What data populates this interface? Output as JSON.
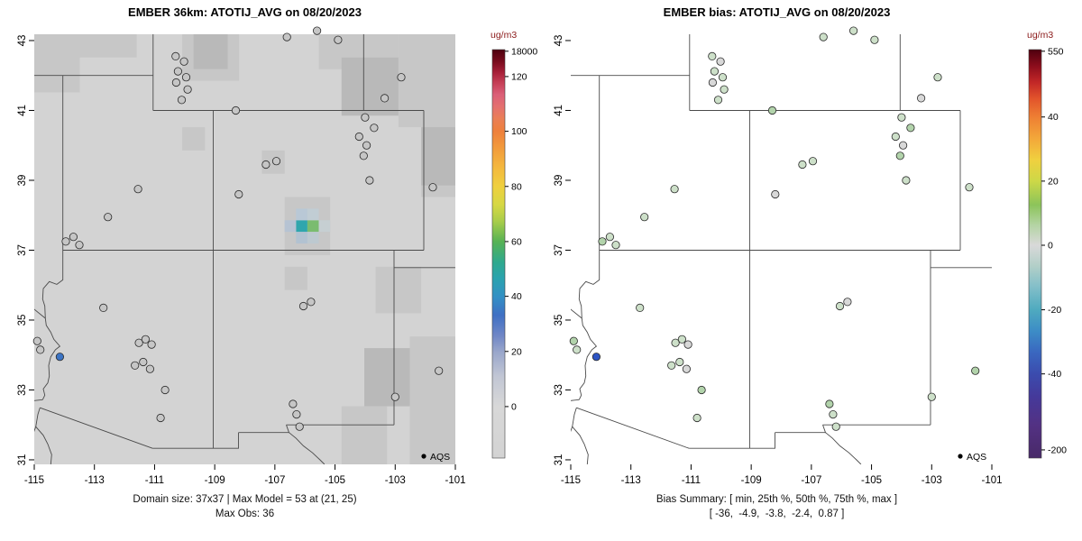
{
  "chart_data": {
    "type": "scatter",
    "subtype": "dual-geospatial-map-panels",
    "region": "Four Corners / Southwestern US",
    "axes": {
      "lon_ticks": [
        -115,
        -113,
        -111,
        -109,
        -107,
        -105,
        -103,
        -101
      ],
      "lat_ticks": [
        31,
        33,
        35,
        37,
        39,
        41,
        43
      ],
      "lon_range": [
        -115,
        -101
      ],
      "lat_range": [
        30.87,
        43.18
      ]
    },
    "style": {
      "border_color": "#4a4a4a",
      "unit_color": "#8b1a1a",
      "station_stroke": "#2a2a2a"
    },
    "domain_size": "37x37",
    "max_model": 53,
    "max_model_at": "(21, 25)",
    "max_obs": 36,
    "bias_summary": {
      "min": -36,
      "p25": -4.9,
      "p50": -3.8,
      "p75": -2.4,
      "max": 0.87
    },
    "panels": [
      {
        "id": "model",
        "title": "EMBER 36km: ATOTIJ_AVG on 08/20/2023",
        "caption_line1": "Domain size: 37x37 | Max Model = 53 at (21, 25)",
        "caption_line2": "Max Obs: 36",
        "legend_label": "AQS",
        "show_raster": true,
        "color_key": "model_color",
        "colorbar": {
          "unit": "ug/m3",
          "ticks": [
            {
              "label": "18000",
              "f": 0.004
            },
            {
              "label": "120",
              "f": 0.066
            },
            {
              "label": "100",
              "f": 0.2
            },
            {
              "label": "80",
              "f": 0.335
            },
            {
              "label": "60",
              "f": 0.47
            },
            {
              "label": "40",
              "f": 0.604
            },
            {
              "label": "20",
              "f": 0.739
            },
            {
              "label": "0",
              "f": 0.874
            }
          ],
          "gradient": [
            [
              "0%",
              "#4e000e"
            ],
            [
              "3%",
              "#7a0c1e"
            ],
            [
              "5.5%",
              "#a61f38"
            ],
            [
              "8%",
              "#c43d55"
            ],
            [
              "11%",
              "#db5f78"
            ],
            [
              "14%",
              "#e4706f"
            ],
            [
              "17%",
              "#ea7f55"
            ],
            [
              "20%",
              "#ee803c"
            ],
            [
              "24%",
              "#f29a3c"
            ],
            [
              "29%",
              "#f4b93e"
            ],
            [
              "33.5%",
              "#efd03f"
            ],
            [
              "38%",
              "#d6d844"
            ],
            [
              "42%",
              "#a9cd4a"
            ],
            [
              "47%",
              "#57b254"
            ],
            [
              "52%",
              "#2fa98d"
            ],
            [
              "56%",
              "#2aa3ae"
            ],
            [
              "60.5%",
              "#3390c5"
            ],
            [
              "65%",
              "#3f70c4"
            ],
            [
              "70%",
              "#6f86c6"
            ],
            [
              "74%",
              "#99a6cb"
            ],
            [
              "80%",
              "#c1c6d4"
            ],
            [
              "87.4%",
              "#d8d8d8"
            ],
            [
              "100%",
              "#d3d3d3"
            ]
          ]
        }
      },
      {
        "id": "bias",
        "title": "EMBER bias: ATOTIJ_AVG on 08/20/2023",
        "caption_line1": "Bias Summary: [ min, 25th %, 50th %, 75th %, max ]",
        "caption_line2": "[ -36,  -4.9,  -3.8,  -2.4,  0.87 ]",
        "legend_label": "AQS",
        "show_raster": false,
        "color_key": "bias_color",
        "colorbar": {
          "unit": "ug/m3",
          "ticks": [
            {
              "label": "550",
              "f": 0.004
            },
            {
              "label": "40",
              "f": 0.165
            },
            {
              "label": "20",
              "f": 0.322
            },
            {
              "label": "0",
              "f": 0.479
            },
            {
              "label": "-20",
              "f": 0.637
            },
            {
              "label": "-40",
              "f": 0.794
            },
            {
              "label": "-200",
              "f": 0.98
            }
          ],
          "gradient": [
            [
              "0%",
              "#4e000e"
            ],
            [
              "4%",
              "#8c0d1c"
            ],
            [
              "8%",
              "#c22727"
            ],
            [
              "12%",
              "#e2542b"
            ],
            [
              "16.5%",
              "#ee7f33"
            ],
            [
              "22%",
              "#f3a93a"
            ],
            [
              "27%",
              "#f0d03f"
            ],
            [
              "32.2%",
              "#cdd847"
            ],
            [
              "38%",
              "#8cc45a"
            ],
            [
              "43%",
              "#b4d4a4"
            ],
            [
              "47.9%",
              "#d9d9d9"
            ],
            [
              "53%",
              "#b2cfc8"
            ],
            [
              "58%",
              "#83bfc9"
            ],
            [
              "63.7%",
              "#4faabf"
            ],
            [
              "69%",
              "#3c8cc6"
            ],
            [
              "74%",
              "#3a68c0"
            ],
            [
              "79.4%",
              "#3b4cae"
            ],
            [
              "85%",
              "#45399a"
            ],
            [
              "92%",
              "#533183"
            ],
            [
              "100%",
              "#482968"
            ]
          ]
        }
      }
    ],
    "raster": {
      "ncols": 37,
      "nrows": 37,
      "base": "#d3d3d3",
      "levels": {
        "1": "#c7c7c7",
        "2": "#b9b9b9"
      },
      "patches": [
        {
          "c0": 0,
          "r0": 0,
          "c1": 8,
          "r1": 1,
          "l": 1
        },
        {
          "c0": 0,
          "r0": 0,
          "c1": 3,
          "r1": 4,
          "l": 1
        },
        {
          "c0": 13,
          "r0": 0,
          "c1": 17,
          "r1": 3,
          "l": 1
        },
        {
          "c0": 14,
          "r0": 0,
          "c1": 16,
          "r1": 2,
          "l": 2
        },
        {
          "c0": 25,
          "r0": 0,
          "c1": 31,
          "r1": 2,
          "l": 1
        },
        {
          "c0": 27,
          "r0": 2,
          "c1": 31,
          "r1": 6,
          "l": 2
        },
        {
          "c0": 32,
          "r0": 0,
          "c1": 36,
          "r1": 7,
          "l": 1
        },
        {
          "c0": 34,
          "r0": 2,
          "c1": 36,
          "r1": 13,
          "l": 1
        },
        {
          "c0": 34,
          "r0": 8,
          "c1": 36,
          "r1": 12,
          "l": 2
        },
        {
          "c0": 13,
          "r0": 8,
          "c1": 14,
          "r1": 9,
          "l": 1
        },
        {
          "c0": 20,
          "r0": 10,
          "c1": 21,
          "r1": 11,
          "l": 1
        },
        {
          "c0": 22,
          "r0": 14,
          "c1": 25,
          "r1": 18,
          "l": 1
        },
        {
          "c0": 22,
          "r0": 20,
          "c1": 23,
          "r1": 21,
          "l": 1
        },
        {
          "c0": 30,
          "r0": 20,
          "c1": 33,
          "r1": 23,
          "l": 1
        },
        {
          "c0": 29,
          "r0": 27,
          "c1": 32,
          "r1": 31,
          "l": 2
        },
        {
          "c0": 33,
          "r0": 26,
          "c1": 36,
          "r1": 36,
          "l": 1
        },
        {
          "c0": 27,
          "r0": 32,
          "c1": 30,
          "r1": 36,
          "l": 1
        }
      ],
      "cells": [
        {
          "c": 23,
          "r": 16,
          "col": "#2fa6ad"
        },
        {
          "c": 24,
          "r": 16,
          "col": "#7abc6f"
        },
        {
          "c": 22,
          "r": 16,
          "col": "#b6c3d3"
        },
        {
          "c": 23,
          "r": 15,
          "col": "#b9c8d6"
        },
        {
          "c": 24,
          "r": 15,
          "col": "#c1cdd4"
        },
        {
          "c": 25,
          "r": 16,
          "col": "#c6cfd2"
        },
        {
          "c": 23,
          "r": 17,
          "col": "#b2c2d1"
        },
        {
          "c": 24,
          "r": 17,
          "col": "#bdc9d0"
        }
      ]
    },
    "borders": [
      [
        [
          -115.35,
          42
        ],
        [
          -111.05,
          42
        ]
      ],
      [
        [
          -111.05,
          43.2
        ],
        [
          -111.05,
          41
        ]
      ],
      [
        [
          -111.05,
          41
        ],
        [
          -102.05,
          41
        ]
      ],
      [
        [
          -104.05,
          43.2
        ],
        [
          -104.05,
          41
        ]
      ],
      [
        [
          -102.05,
          41
        ],
        [
          -102.05,
          37
        ]
      ],
      [
        [
          -114.05,
          42
        ],
        [
          -114.05,
          37
        ]
      ],
      [
        [
          -114.05,
          37
        ],
        [
          -102.05,
          37
        ]
      ],
      [
        [
          -109.05,
          41
        ],
        [
          -109.05,
          37
        ]
      ],
      [
        [
          -109.05,
          37
        ],
        [
          -109.05,
          31.33
        ]
      ],
      [
        [
          -103.04,
          37
        ],
        [
          -103.04,
          32.0
        ]
      ],
      [
        [
          -103.04,
          32.0
        ],
        [
          -106.62,
          32.0
        ]
      ],
      [
        [
          -106.62,
          32.0
        ],
        [
          -106.53,
          31.78
        ],
        [
          -108.21,
          31.78
        ]
      ],
      [
        [
          -108.21,
          31.78
        ],
        [
          -108.21,
          31.33
        ],
        [
          -111.07,
          31.33
        ]
      ],
      [
        [
          -111.07,
          31.33
        ],
        [
          -114.81,
          32.49
        ]
      ],
      [
        [
          -106.53,
          31.78
        ],
        [
          -106.3,
          31.62
        ],
        [
          -106.05,
          31.4
        ],
        [
          -105.75,
          31.2
        ],
        [
          -105.5,
          31.0
        ],
        [
          -105.35,
          30.87
        ]
      ],
      [
        [
          -103.04,
          36.5
        ],
        [
          -100.8,
          36.5
        ]
      ],
      [
        [
          -114.05,
          37
        ],
        [
          -114.05,
          36.15
        ],
        [
          -114.25,
          36.02
        ],
        [
          -114.5,
          36.1
        ],
        [
          -114.7,
          35.9
        ],
        [
          -114.72,
          35.6
        ],
        [
          -114.65,
          35.4
        ],
        [
          -114.63,
          35.05
        ],
        [
          -114.6,
          34.85
        ],
        [
          -114.45,
          34.65
        ],
        [
          -114.35,
          34.45
        ],
        [
          -114.15,
          34.25
        ],
        [
          -114.3,
          34.15
        ],
        [
          -114.45,
          33.95
        ],
        [
          -114.52,
          33.7
        ],
        [
          -114.5,
          33.4
        ],
        [
          -114.55,
          33.2
        ],
        [
          -114.7,
          33.03
        ],
        [
          -114.65,
          32.85
        ],
        [
          -114.72,
          32.72
        ]
      ],
      [
        [
          -115.35,
          35.55
        ],
        [
          -114.63,
          35.05
        ]
      ],
      [
        [
          -114.72,
          32.72
        ],
        [
          -115.35,
          32.66
        ]
      ],
      [
        [
          -114.81,
          32.49
        ],
        [
          -114.88,
          32.3
        ],
        [
          -114.95,
          31.95
        ],
        [
          -114.7,
          31.7
        ],
        [
          -114.55,
          31.45
        ],
        [
          -114.42,
          31.15
        ],
        [
          -114.45,
          30.87
        ]
      ],
      [
        [
          -114.95,
          31.95
        ],
        [
          -115.1,
          31.6
        ],
        [
          -115.2,
          31.25
        ],
        [
          -115.12,
          30.95
        ],
        [
          -115.05,
          30.87
        ]
      ]
    ],
    "stations": [
      {
        "lon": -106.6,
        "lat": 43.1,
        "model_color": "#c6c6c6",
        "bias_color": "#cde0c9"
      },
      {
        "lon": -104.9,
        "lat": 43.02,
        "model_color": "#c6c6c6",
        "bias_color": "#cde0c9"
      },
      {
        "lon": -105.6,
        "lat": 43.28,
        "model_color": "#c6c6c6",
        "bias_color": "#cde0c9"
      },
      {
        "lon": -110.3,
        "lat": 42.55,
        "model_color": "#c6c6c6",
        "bias_color": "#cde0c9"
      },
      {
        "lon": -110.02,
        "lat": 42.4,
        "model_color": "#c6c6c6",
        "bias_color": "#d8d8d8"
      },
      {
        "lon": -110.22,
        "lat": 42.12,
        "model_color": "#c6c6c6",
        "bias_color": "#cde0c9"
      },
      {
        "lon": -109.95,
        "lat": 41.95,
        "model_color": "#c6c6c6",
        "bias_color": "#cde0c9"
      },
      {
        "lon": -110.28,
        "lat": 41.8,
        "model_color": "#c6c6c6",
        "bias_color": "#d8d8d8"
      },
      {
        "lon": -109.9,
        "lat": 41.6,
        "model_color": "#c6c6c6",
        "bias_color": "#cde0c9"
      },
      {
        "lon": -110.1,
        "lat": 41.3,
        "model_color": "#c6c6c6",
        "bias_color": "#cde0c9"
      },
      {
        "lon": -108.3,
        "lat": 41.0,
        "model_color": "#c6c6c6",
        "bias_color": "#b2d3ab"
      },
      {
        "lon": -102.8,
        "lat": 41.95,
        "model_color": "#c6c6c6",
        "bias_color": "#cde0c9"
      },
      {
        "lon": -103.35,
        "lat": 41.35,
        "model_color": "#c6c6c6",
        "bias_color": "#d8d8d8"
      },
      {
        "lon": -104.0,
        "lat": 40.8,
        "model_color": "#c6c6c6",
        "bias_color": "#cde0c9"
      },
      {
        "lon": -103.7,
        "lat": 40.5,
        "model_color": "#c6c6c6",
        "bias_color": "#b2d3ab"
      },
      {
        "lon": -104.2,
        "lat": 40.25,
        "model_color": "#c6c6c6",
        "bias_color": "#cde0c9"
      },
      {
        "lon": -103.95,
        "lat": 40.0,
        "model_color": "#c6c6c6",
        "bias_color": "#d8d8d8"
      },
      {
        "lon": -104.05,
        "lat": 39.7,
        "model_color": "#c6c6c6",
        "bias_color": "#b2d3ab"
      },
      {
        "lon": -107.3,
        "lat": 39.45,
        "model_color": "#c6c6c6",
        "bias_color": "#cde0c9"
      },
      {
        "lon": -106.95,
        "lat": 39.55,
        "model_color": "#c6c6c6",
        "bias_color": "#cde0c9"
      },
      {
        "lon": -103.85,
        "lat": 39.0,
        "model_color": "#c6c6c6",
        "bias_color": "#cde0c9"
      },
      {
        "lon": -101.75,
        "lat": 38.8,
        "model_color": "#c6c6c6",
        "bias_color": "#cde0c9"
      },
      {
        "lon": -111.55,
        "lat": 38.75,
        "model_color": "#c6c6c6",
        "bias_color": "#cde0c9"
      },
      {
        "lon": -108.2,
        "lat": 38.6,
        "model_color": "#c6c6c6",
        "bias_color": "#d8d8d8"
      },
      {
        "lon": -112.55,
        "lat": 37.95,
        "model_color": "#c6c6c6",
        "bias_color": "#cde0c9"
      },
      {
        "lon": -113.95,
        "lat": 37.25,
        "model_color": "#c6c6c6",
        "bias_color": "#b2d3ab"
      },
      {
        "lon": -113.7,
        "lat": 37.38,
        "model_color": "#c6c6c6",
        "bias_color": "#cde0c9"
      },
      {
        "lon": -113.5,
        "lat": 37.15,
        "model_color": "#c6c6c6",
        "bias_color": "#cde0c9"
      },
      {
        "lon": -112.7,
        "lat": 35.35,
        "model_color": "#c6c6c6",
        "bias_color": "#cde0c9"
      },
      {
        "lon": -106.05,
        "lat": 35.4,
        "model_color": "#c6c6c6",
        "bias_color": "#cde0c9"
      },
      {
        "lon": -105.8,
        "lat": 35.52,
        "model_color": "#c6c6c6",
        "bias_color": "#d8d8d8"
      },
      {
        "lon": -111.3,
        "lat": 34.45,
        "model_color": "#c6c6c6",
        "bias_color": "#cde0c9"
      },
      {
        "lon": -111.1,
        "lat": 34.3,
        "model_color": "#c6c6c6",
        "bias_color": "#d8d8d8"
      },
      {
        "lon": -111.52,
        "lat": 34.35,
        "model_color": "#c6c6c6",
        "bias_color": "#cde0c9"
      },
      {
        "lon": -114.9,
        "lat": 34.4,
        "model_color": "#c6c6c6",
        "bias_color": "#b2d3ab"
      },
      {
        "lon": -114.8,
        "lat": 34.15,
        "model_color": "#c6c6c6",
        "bias_color": "#cde0c9"
      },
      {
        "lon": -114.15,
        "lat": 33.95,
        "model_color": "#3c74c4",
        "bias_color": "#2d55c4"
      },
      {
        "lon": -111.65,
        "lat": 33.7,
        "model_color": "#c6c6c6",
        "bias_color": "#cde0c9"
      },
      {
        "lon": -111.38,
        "lat": 33.8,
        "model_color": "#c6c6c6",
        "bias_color": "#cde0c9"
      },
      {
        "lon": -111.15,
        "lat": 33.6,
        "model_color": "#c6c6c6",
        "bias_color": "#d8d8d8"
      },
      {
        "lon": -110.65,
        "lat": 33.0,
        "model_color": "#c6c6c6",
        "bias_color": "#b2d3ab"
      },
      {
        "lon": -110.8,
        "lat": 32.2,
        "model_color": "#c6c6c6",
        "bias_color": "#cde0c9"
      },
      {
        "lon": -106.4,
        "lat": 32.6,
        "model_color": "#c6c6c6",
        "bias_color": "#b2d3ab"
      },
      {
        "lon": -106.28,
        "lat": 32.3,
        "model_color": "#c6c6c6",
        "bias_color": "#cde0c9"
      },
      {
        "lon": -106.18,
        "lat": 31.95,
        "model_color": "#c6c6c6",
        "bias_color": "#cde0c9"
      },
      {
        "lon": -103.0,
        "lat": 32.8,
        "model_color": "#c6c6c6",
        "bias_color": "#cde0c9"
      },
      {
        "lon": -101.55,
        "lat": 33.55,
        "model_color": "#c6c6c6",
        "bias_color": "#b2d3ab"
      }
    ]
  }
}
